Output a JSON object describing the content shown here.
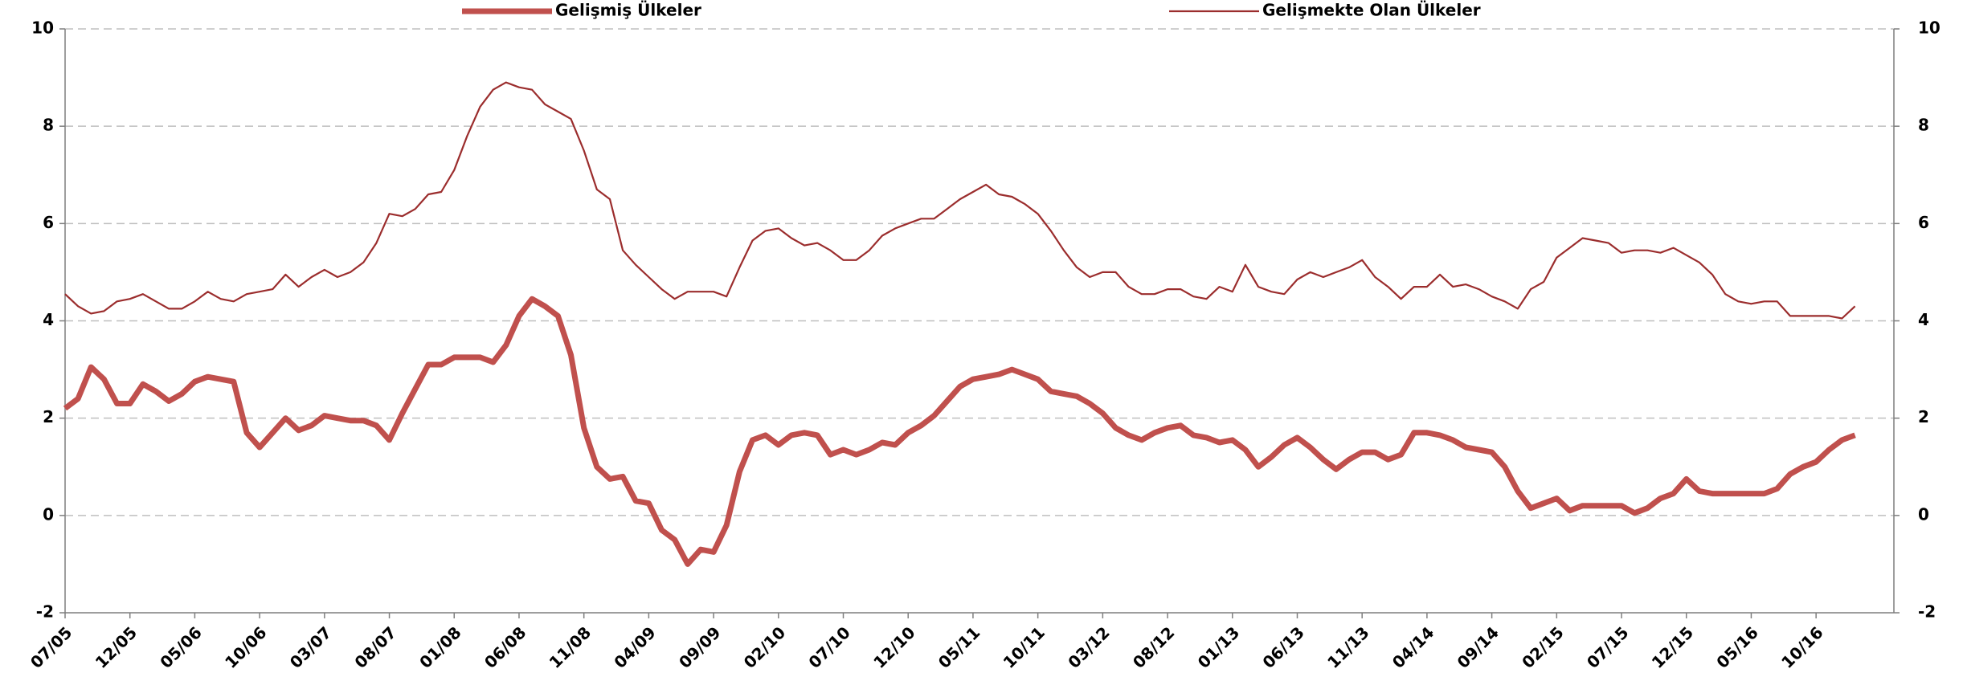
{
  "chart_data": {
    "type": "line",
    "categories": [
      "07/05",
      null,
      null,
      null,
      null,
      "12/05",
      null,
      null,
      null,
      null,
      "05/06",
      null,
      null,
      null,
      null,
      "10/06",
      null,
      null,
      null,
      null,
      "03/07",
      null,
      null,
      null,
      null,
      "08/07",
      null,
      null,
      null,
      null,
      "01/08",
      null,
      null,
      null,
      null,
      "06/08",
      null,
      null,
      null,
      null,
      "11/08",
      null,
      null,
      null,
      null,
      "04/09",
      null,
      null,
      null,
      null,
      "09/09",
      null,
      null,
      null,
      null,
      "02/10",
      null,
      null,
      null,
      null,
      "07/10",
      null,
      null,
      null,
      null,
      "12/10",
      null,
      null,
      null,
      null,
      "05/11",
      null,
      null,
      null,
      null,
      "10/11",
      null,
      null,
      null,
      null,
      "03/12",
      null,
      null,
      null,
      null,
      "08/12",
      null,
      null,
      null,
      null,
      "01/13",
      null,
      null,
      null,
      null,
      "06/13",
      null,
      null,
      null,
      null,
      "11/13",
      null,
      null,
      null,
      null,
      "04/14",
      null,
      null,
      null,
      null,
      "09/14",
      null,
      null,
      null,
      null,
      "02/15",
      null,
      null,
      null,
      null,
      "07/15",
      null,
      null,
      null,
      null,
      "12/15",
      null,
      null,
      null,
      null,
      "05/16",
      null,
      null,
      null,
      null,
      "10/16",
      null,
      null,
      null
    ],
    "series": [
      {
        "name": "Gelişmiş Ülkeler",
        "color": "#c0504d",
        "width": 7,
        "values": [
          2.2,
          2.4,
          3.05,
          2.8,
          2.3,
          2.3,
          2.7,
          2.55,
          2.35,
          2.5,
          2.75,
          2.85,
          2.8,
          2.75,
          1.7,
          1.4,
          1.7,
          2.0,
          1.75,
          1.85,
          2.05,
          2.0,
          1.95,
          1.95,
          1.85,
          1.55,
          2.1,
          2.6,
          3.1,
          3.1,
          3.25,
          3.25,
          3.25,
          3.15,
          3.5,
          4.1,
          4.45,
          4.3,
          4.1,
          3.3,
          1.8,
          1.0,
          0.75,
          0.8,
          0.3,
          0.25,
          -0.3,
          -0.5,
          -1.0,
          -0.7,
          -0.75,
          -0.2,
          0.9,
          1.55,
          1.65,
          1.45,
          1.65,
          1.7,
          1.65,
          1.25,
          1.35,
          1.25,
          1.35,
          1.5,
          1.45,
          1.7,
          1.85,
          2.05,
          2.35,
          2.65,
          2.8,
          2.85,
          2.9,
          3.0,
          2.9,
          2.8,
          2.55,
          2.5,
          2.45,
          2.3,
          2.1,
          1.8,
          1.65,
          1.55,
          1.7,
          1.8,
          1.85,
          1.65,
          1.6,
          1.5,
          1.55,
          1.35,
          1.0,
          1.2,
          1.45,
          1.6,
          1.4,
          1.15,
          0.95,
          1.15,
          1.3,
          1.3,
          1.15,
          1.25,
          1.7,
          1.7,
          1.65,
          1.55,
          1.4,
          1.35,
          1.3,
          1.0,
          0.5,
          0.15,
          0.25,
          0.35,
          0.1,
          0.2,
          0.2,
          0.2,
          0.2,
          0.05,
          0.15,
          0.35,
          0.45,
          0.75,
          0.5,
          0.45,
          0.45,
          0.45,
          0.45,
          0.45,
          0.55,
          0.85,
          1.0,
          1.1,
          1.35,
          1.55,
          1.65
        ]
      },
      {
        "name": "Gelişmekte Olan Ülkeler",
        "color": "#9b2d2d",
        "width": 2.2,
        "axis": "y2",
        "values": [
          4.55,
          4.3,
          4.15,
          4.2,
          4.4,
          4.45,
          4.55,
          4.4,
          4.25,
          4.25,
          4.4,
          4.6,
          4.45,
          4.4,
          4.55,
          4.6,
          4.65,
          4.95,
          4.7,
          4.9,
          5.05,
          4.9,
          5.0,
          5.2,
          5.6,
          6.2,
          6.15,
          6.3,
          6.6,
          6.65,
          7.1,
          7.8,
          8.4,
          8.75,
          8.9,
          8.8,
          8.75,
          8.45,
          8.3,
          8.15,
          7.5,
          6.7,
          6.5,
          5.45,
          5.15,
          4.9,
          4.65,
          4.45,
          4.6,
          4.6,
          4.6,
          4.5,
          5.1,
          5.65,
          5.85,
          5.9,
          5.7,
          5.55,
          5.6,
          5.45,
          5.25,
          5.25,
          5.45,
          5.75,
          5.9,
          6.0,
          6.1,
          6.1,
          6.3,
          6.5,
          6.65,
          6.8,
          6.6,
          6.55,
          6.4,
          6.2,
          5.85,
          5.45,
          5.1,
          4.9,
          5.0,
          5.0,
          4.7,
          4.55,
          4.55,
          4.65,
          4.65,
          4.5,
          4.45,
          4.7,
          4.6,
          5.15,
          4.7,
          4.6,
          4.55,
          4.85,
          5.0,
          4.9,
          5.0,
          5.1,
          5.25,
          4.9,
          4.7,
          4.45,
          4.7,
          4.7,
          4.95,
          4.7,
          4.75,
          4.65,
          4.5,
          4.4,
          4.25,
          4.65,
          4.8,
          5.3,
          5.5,
          5.7,
          5.65,
          5.6,
          5.4,
          5.45,
          5.45,
          5.4,
          5.5,
          5.35,
          5.2,
          4.95,
          4.55,
          4.4,
          4.35,
          4.4,
          4.4,
          4.1,
          4.1,
          4.1,
          4.1,
          4.05,
          4.3
        ]
      }
    ],
    "ylim": [
      -2,
      10
    ],
    "yticks": [
      -2,
      0,
      2,
      4,
      6,
      8,
      10
    ],
    "y2lim": [
      -2,
      10
    ],
    "y2ticks": [
      -2,
      0,
      2,
      4,
      6,
      8,
      10
    ],
    "grid": true,
    "legend": "top"
  }
}
